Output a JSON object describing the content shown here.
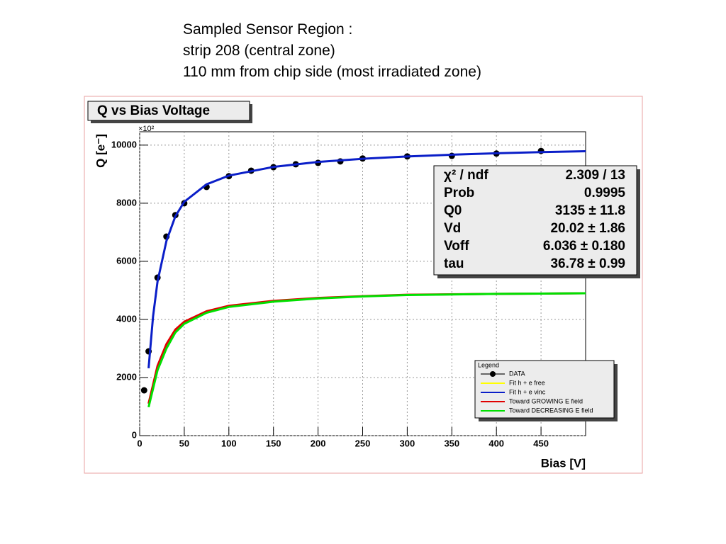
{
  "slide_text": {
    "lines": [
      "Sampled Sensor Region :",
      "strip 208 (central zone)",
      "110 mm from chip side (most irradiated zone)"
    ]
  },
  "chart_data": {
    "type": "line",
    "title": "Q vs Bias Voltage",
    "x_label": "Bias [V]",
    "y_label": "Q [e⁻]",
    "y_multiplier": "×10²",
    "xlim": [
      0,
      500
    ],
    "ylim": [
      0,
      10460
    ],
    "xticks": [
      0,
      50,
      100,
      150,
      200,
      250,
      300,
      350,
      400,
      450
    ],
    "yticks": [
      0,
      2000,
      4000,
      6000,
      8000,
      10000
    ],
    "grid": true,
    "legend_title": "Legend",
    "legend_position": "lower right",
    "series": [
      {
        "name": "DATA",
        "color": "#000000",
        "mode": "markers",
        "x": [
          5,
          10,
          20,
          30,
          40,
          50,
          75,
          100,
          125,
          150,
          175,
          200,
          225,
          250,
          300,
          350,
          400,
          450
        ],
        "values": [
          1560,
          2900,
          5440,
          6850,
          7590,
          8000,
          8560,
          8930,
          9120,
          9240,
          9340,
          9390,
          9440,
          9540,
          9610,
          9630,
          9710,
          9800
        ]
      },
      {
        "name": "Fit h + e free",
        "color": "#ffff00",
        "mode": "line",
        "x": [],
        "values": []
      },
      {
        "name": "Fit h + e vinc",
        "color": "#0a1ec8",
        "mode": "line",
        "x": [
          10,
          15,
          20,
          30,
          40,
          50,
          75,
          100,
          150,
          200,
          250,
          300,
          350,
          400,
          450,
          500
        ],
        "values": [
          2320,
          4100,
          5300,
          6700,
          7550,
          8050,
          8650,
          8950,
          9250,
          9420,
          9530,
          9610,
          9670,
          9720,
          9760,
          9790
        ]
      },
      {
        "name": "Toward GROWING E field",
        "color": "#e00000",
        "mode": "line",
        "x": [
          10,
          20,
          30,
          40,
          50,
          75,
          100,
          150,
          200,
          250,
          300,
          400,
          500
        ],
        "values": [
          1100,
          2400,
          3150,
          3650,
          3920,
          4280,
          4470,
          4640,
          4740,
          4800,
          4850,
          4880,
          4900
        ]
      },
      {
        "name": "Toward DECREASING E field",
        "color": "#00e000",
        "mode": "line",
        "x": [
          10,
          20,
          30,
          40,
          50,
          75,
          100,
          150,
          200,
          250,
          300,
          400,
          500
        ],
        "values": [
          980,
          2250,
          3000,
          3550,
          3850,
          4230,
          4430,
          4610,
          4720,
          4790,
          4840,
          4880,
          4900
        ]
      }
    ],
    "stats": [
      {
        "name": "χ² / ndf",
        "value": "2.309 / 13"
      },
      {
        "name": "Prob",
        "value": "0.9995"
      },
      {
        "name": "Q0",
        "value": "3135 ± 11.8"
      },
      {
        "name": "Vd",
        "value": "20.02 ± 1.86"
      },
      {
        "name": "Voff",
        "value": "6.036 ± 0.180"
      },
      {
        "name": "tau",
        "value": "36.78 ± 0.99"
      }
    ]
  }
}
